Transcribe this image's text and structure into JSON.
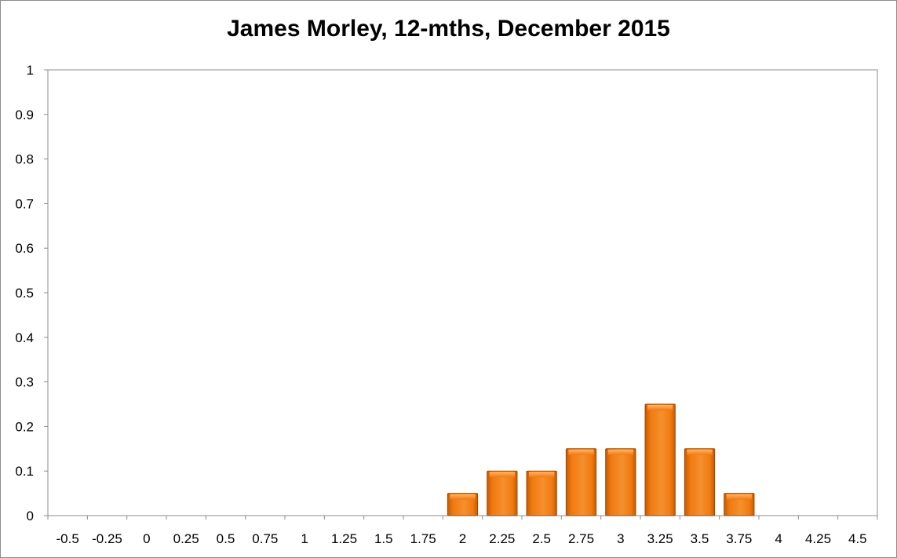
{
  "chart_data": {
    "type": "bar",
    "title": "James Morley, 12-mths, December 2015",
    "xlabel": "",
    "ylabel": "",
    "categories": [
      "-0.5",
      "-0.25",
      "0",
      "0.25",
      "0.5",
      "0.75",
      "1",
      "1.25",
      "1.5",
      "1.75",
      "2",
      "2.25",
      "2.5",
      "2.75",
      "3",
      "3.25",
      "3.5",
      "3.75",
      "4",
      "4.25",
      "4.5"
    ],
    "values": [
      0,
      0,
      0,
      0,
      0,
      0,
      0,
      0,
      0,
      0,
      0.05,
      0.1,
      0.1,
      0.15,
      0.15,
      0.25,
      0.15,
      0.05,
      0,
      0,
      0
    ],
    "ylim": [
      0,
      1
    ],
    "yticks": [
      "0",
      "0.1",
      "0.2",
      "0.3",
      "0.4",
      "0.5",
      "0.6",
      "0.7",
      "0.8",
      "0.9",
      "1"
    ],
    "grid": false,
    "legend": "none",
    "bar_color": "#f07a10",
    "bar_edge_color": "#9a4a05"
  }
}
